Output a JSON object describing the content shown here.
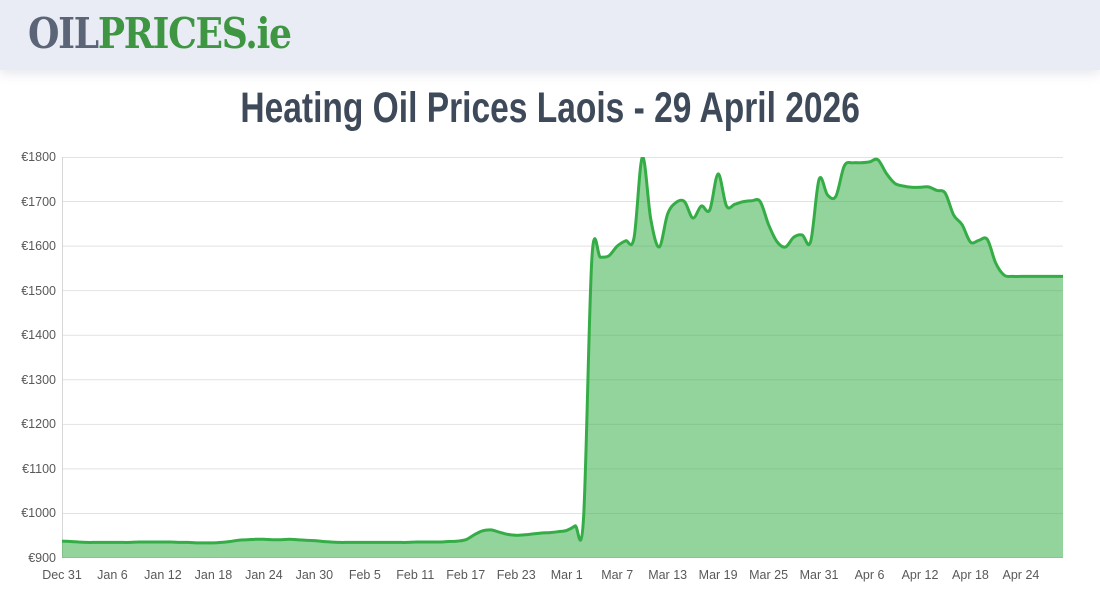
{
  "header": {
    "logo_oil": "OIL",
    "logo_prices": "PRICES",
    "logo_tld": ".ie",
    "logo_colors": {
      "oil": "#5b6577",
      "prices": "#3f9642"
    },
    "background": "#e9ecf4"
  },
  "title": "Heating Oil Prices Laois - 29 April 2026",
  "title_color": "#3e4a59",
  "chart_data": {
    "type": "area",
    "title": "Heating Oil Prices Laois - 29 April 2026",
    "xlabel": "",
    "ylabel": "",
    "x_tick_labels": [
      "Dec 31",
      "Jan 6",
      "Jan 12",
      "Jan 18",
      "Jan 24",
      "Jan 30",
      "Feb 5",
      "Feb 11",
      "Feb 17",
      "Feb 23",
      "Mar 1",
      "Mar 7",
      "Mar 13",
      "Mar 19",
      "Mar 25",
      "Mar 31",
      "Apr 6",
      "Apr 12",
      "Apr 18",
      "Apr 24"
    ],
    "x_tick_interval_days": 6,
    "x_total_days": 120,
    "y_ticks": [
      900,
      1000,
      1100,
      1200,
      1300,
      1400,
      1500,
      1600,
      1700,
      1800
    ],
    "y_tick_prefix": "€",
    "ylim": [
      900,
      1800
    ],
    "grid": "horizontal",
    "legend": "none",
    "series": [
      {
        "name": "price_eur",
        "values": [
          938,
          937,
          936,
          935,
          935,
          935,
          935,
          935,
          935,
          936,
          936,
          936,
          936,
          936,
          935,
          935,
          934,
          934,
          934,
          935,
          937,
          940,
          941,
          942,
          942,
          941,
          941,
          942,
          941,
          940,
          939,
          937,
          936,
          935,
          935,
          935,
          935,
          935,
          935,
          935,
          935,
          935,
          936,
          936,
          936,
          936,
          937,
          938,
          941,
          952,
          961,
          963,
          958,
          953,
          951,
          952,
          954,
          956,
          957,
          959,
          962,
          972,
          988,
          1573,
          1575,
          1578,
          1600,
          1612,
          1618,
          1800,
          1660,
          1598,
          1672,
          1698,
          1700,
          1663,
          1690,
          1681,
          1762,
          1690,
          1694,
          1700,
          1702,
          1700,
          1648,
          1610,
          1598,
          1620,
          1625,
          1610,
          1750,
          1715,
          1712,
          1780,
          1787,
          1787,
          1789,
          1794,
          1763,
          1741,
          1735,
          1732,
          1732,
          1733,
          1725,
          1719,
          1670,
          1648,
          1609,
          1613,
          1615,
          1562,
          1535,
          1532,
          1532,
          1532,
          1532,
          1532,
          1532,
          1532
        ]
      }
    ],
    "colors": {
      "line": "#35ad46",
      "fill": "#3aaf4a",
      "fill_opacity": 0.55,
      "grid": "#e2e2e2",
      "axis": "#d6d6d6",
      "label": "#58595b"
    }
  }
}
